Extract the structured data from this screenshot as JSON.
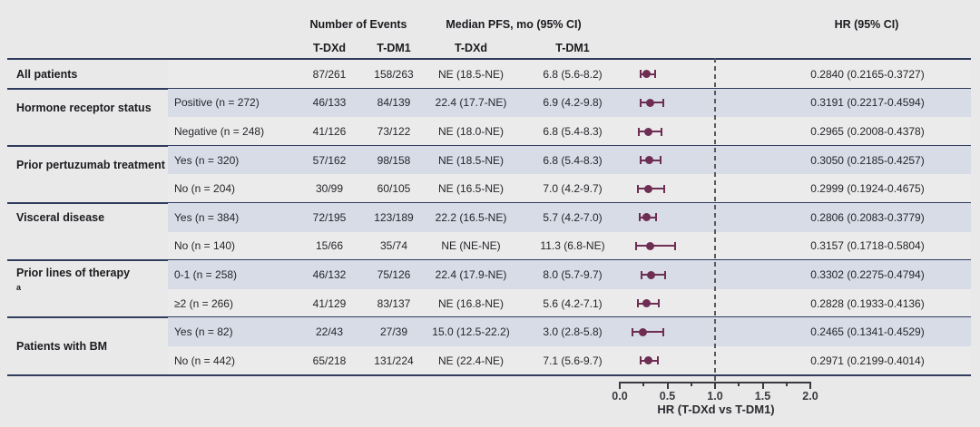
{
  "header": {
    "events": "Number of Events",
    "pfs": "Median PFS, mo (95% CI)",
    "hr": "HR (95% CI)",
    "events_tdxd": "T-DXd",
    "events_tdm1": "T-DM1",
    "pfs_tdxd": "T-DXd",
    "pfs_tdm1": "T-DM1"
  },
  "axis": {
    "label": "HR (T-DXd vs T-DM1)",
    "ticks": [
      "0.0",
      "0.5",
      "1.0",
      "1.5",
      "2.0"
    ],
    "min": 0,
    "max": 2,
    "reference_line": 1.0
  },
  "colors": {
    "marker": "#6e2d52",
    "band_blue": "#d7dce7",
    "band_gray": "#ebebeb",
    "divider": "#303c5e",
    "refline": "#5a5a5a",
    "background": "#e9e9e9"
  },
  "chart_data": {
    "type": "forest",
    "comparison": "T-DXd vs T-DM1",
    "xlabel": "HR (T-DXd vs T-DM1)",
    "xlim": [
      0,
      2
    ],
    "xticks": [
      0.0,
      0.5,
      1.0,
      1.5,
      2.0
    ],
    "reference_line": 1.0,
    "columns": [
      "Number of Events T-DXd",
      "Number of Events T-DM1",
      "Median PFS, mo (95% CI) T-DXd",
      "Median PFS, mo (95% CI) T-DM1",
      "HR (95% CI)"
    ],
    "groups": [
      {
        "label": "All patients",
        "sup": "",
        "label_centered": true,
        "rows": [
          {
            "sublabel": "",
            "ev_tdxd": "87/261",
            "ev_tdm1": "158/263",
            "pfs_tdxd": "NE (18.5-NE)",
            "pfs_tdm1": "6.8 (5.6-8.2)",
            "hr": 0.284,
            "ci_low": 0.2165,
            "ci_high": 0.3727,
            "hr_text": "0.2840 (0.2165-0.3727)"
          }
        ]
      },
      {
        "label": "Hormone receptor status",
        "sup": "",
        "label_centered": false,
        "rows": [
          {
            "sublabel": "Positive (n = 272)",
            "ev_tdxd": "46/133",
            "ev_tdm1": "84/139",
            "pfs_tdxd": "22.4 (17.7-NE)",
            "pfs_tdm1": "6.9 (4.2-9.8)",
            "hr": 0.3191,
            "ci_low": 0.2217,
            "ci_high": 0.4594,
            "hr_text": "0.3191 (0.2217-0.4594)"
          },
          {
            "sublabel": "Negative (n = 248)",
            "ev_tdxd": "41/126",
            "ev_tdm1": "73/122",
            "pfs_tdxd": "NE (18.0-NE)",
            "pfs_tdm1": "6.8 (5.4-8.3)",
            "hr": 0.2965,
            "ci_low": 0.2008,
            "ci_high": 0.4378,
            "hr_text": "0.2965 (0.2008-0.4378)"
          }
        ]
      },
      {
        "label": "Prior pertuzumab treatment",
        "sup": "",
        "label_centered": false,
        "rows": [
          {
            "sublabel": "Yes (n = 320)",
            "ev_tdxd": "57/162",
            "ev_tdm1": "98/158",
            "pfs_tdxd": "NE (18.5-NE)",
            "pfs_tdm1": "6.8 (5.4-8.3)",
            "hr": 0.305,
            "ci_low": 0.2185,
            "ci_high": 0.4257,
            "hr_text": "0.3050 (0.2185-0.4257)"
          },
          {
            "sublabel": "No (n = 204)",
            "ev_tdxd": "30/99",
            "ev_tdm1": "60/105",
            "pfs_tdxd": "NE (16.5-NE)",
            "pfs_tdm1": "7.0 (4.2-9.7)",
            "hr": 0.2999,
            "ci_low": 0.1924,
            "ci_high": 0.4675,
            "hr_text": "0.2999 (0.1924-0.4675)"
          }
        ]
      },
      {
        "label": "Visceral disease",
        "sup": "",
        "label_centered": false,
        "rows": [
          {
            "sublabel": "Yes (n = 384)",
            "ev_tdxd": "72/195",
            "ev_tdm1": "123/189",
            "pfs_tdxd": "22.2 (16.5-NE)",
            "pfs_tdm1": "5.7 (4.2-7.0)",
            "hr": 0.2806,
            "ci_low": 0.2083,
            "ci_high": 0.3779,
            "hr_text": "0.2806 (0.2083-0.3779)"
          },
          {
            "sublabel": "No (n = 140)",
            "ev_tdxd": "15/66",
            "ev_tdm1": "35/74",
            "pfs_tdxd": "NE (NE-NE)",
            "pfs_tdm1": "11.3 (6.8-NE)",
            "hr": 0.3157,
            "ci_low": 0.1718,
            "ci_high": 0.5804,
            "hr_text": "0.3157 (0.1718-0.5804)"
          }
        ]
      },
      {
        "label": "Prior lines of therapy",
        "sup": "a",
        "label_centered": false,
        "rows": [
          {
            "sublabel": "0-1 (n = 258)",
            "ev_tdxd": "46/132",
            "ev_tdm1": "75/126",
            "pfs_tdxd": "22.4 (17.9-NE)",
            "pfs_tdm1": "8.0 (5.7-9.7)",
            "hr": 0.3302,
            "ci_low": 0.2275,
            "ci_high": 0.4794,
            "hr_text": "0.3302 (0.2275-0.4794)"
          },
          {
            "sublabel": "≥2 (n = 266)",
            "ev_tdxd": "41/129",
            "ev_tdm1": "83/137",
            "pfs_tdxd": "NE (16.8-NE)",
            "pfs_tdm1": "5.6 (4.2-7.1)",
            "hr": 0.2828,
            "ci_low": 0.1933,
            "ci_high": 0.4136,
            "hr_text": "0.2828 (0.1933-0.4136)"
          }
        ]
      },
      {
        "label": "Patients with BM",
        "sup": "",
        "label_centered": true,
        "rows": [
          {
            "sublabel": "Yes (n = 82)",
            "ev_tdxd": "22/43",
            "ev_tdm1": "27/39",
            "pfs_tdxd": "15.0 (12.5-22.2)",
            "pfs_tdm1": "3.0 (2.8-5.8)",
            "hr": 0.2465,
            "ci_low": 0.1341,
            "ci_high": 0.4529,
            "hr_text": "0.2465 (0.1341-0.4529)"
          },
          {
            "sublabel": "No (n = 442)",
            "ev_tdxd": "65/218",
            "ev_tdm1": "131/224",
            "pfs_tdxd": "NE (22.4-NE)",
            "pfs_tdm1": "7.1 (5.6-9.7)",
            "hr": 0.2971,
            "ci_low": 0.2199,
            "ci_high": 0.4014,
            "hr_text": "0.2971 (0.2199-0.4014)"
          }
        ]
      }
    ]
  }
}
